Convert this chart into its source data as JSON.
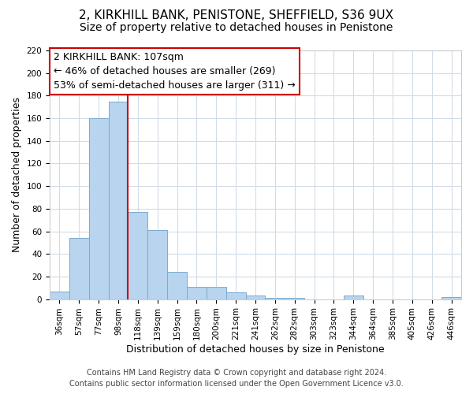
{
  "title": "2, KIRKHILL BANK, PENISTONE, SHEFFIELD, S36 9UX",
  "subtitle": "Size of property relative to detached houses in Penistone",
  "xlabel": "Distribution of detached houses by size in Penistone",
  "ylabel": "Number of detached properties",
  "categories": [
    "36sqm",
    "57sqm",
    "77sqm",
    "98sqm",
    "118sqm",
    "139sqm",
    "159sqm",
    "180sqm",
    "200sqm",
    "221sqm",
    "241sqm",
    "262sqm",
    "282sqm",
    "303sqm",
    "323sqm",
    "344sqm",
    "364sqm",
    "385sqm",
    "405sqm",
    "426sqm",
    "446sqm"
  ],
  "values": [
    7,
    54,
    160,
    175,
    77,
    61,
    24,
    11,
    11,
    6,
    3,
    1,
    1,
    0,
    0,
    3,
    0,
    0,
    0,
    0,
    2
  ],
  "bar_color": "#b8d4ee",
  "bar_edge_color": "#7aabcf",
  "vline_x": 3.5,
  "vline_color": "#cc0000",
  "ylim": [
    0,
    220
  ],
  "yticks": [
    0,
    20,
    40,
    60,
    80,
    100,
    120,
    140,
    160,
    180,
    200,
    220
  ],
  "ann_line1": "2 KIRKHILL BANK: 107sqm",
  "ann_line2": "← 46% of detached houses are smaller (269)",
  "ann_line3": "53% of semi-detached houses are larger (311) →",
  "footer_line1": "Contains HM Land Registry data © Crown copyright and database right 2024.",
  "footer_line2": "Contains public sector information licensed under the Open Government Licence v3.0.",
  "background_color": "#ffffff",
  "grid_color": "#d0dce8",
  "title_fontsize": 11,
  "subtitle_fontsize": 10,
  "axis_label_fontsize": 9,
  "tick_fontsize": 7.5,
  "annotation_fontsize": 9,
  "footer_fontsize": 7
}
